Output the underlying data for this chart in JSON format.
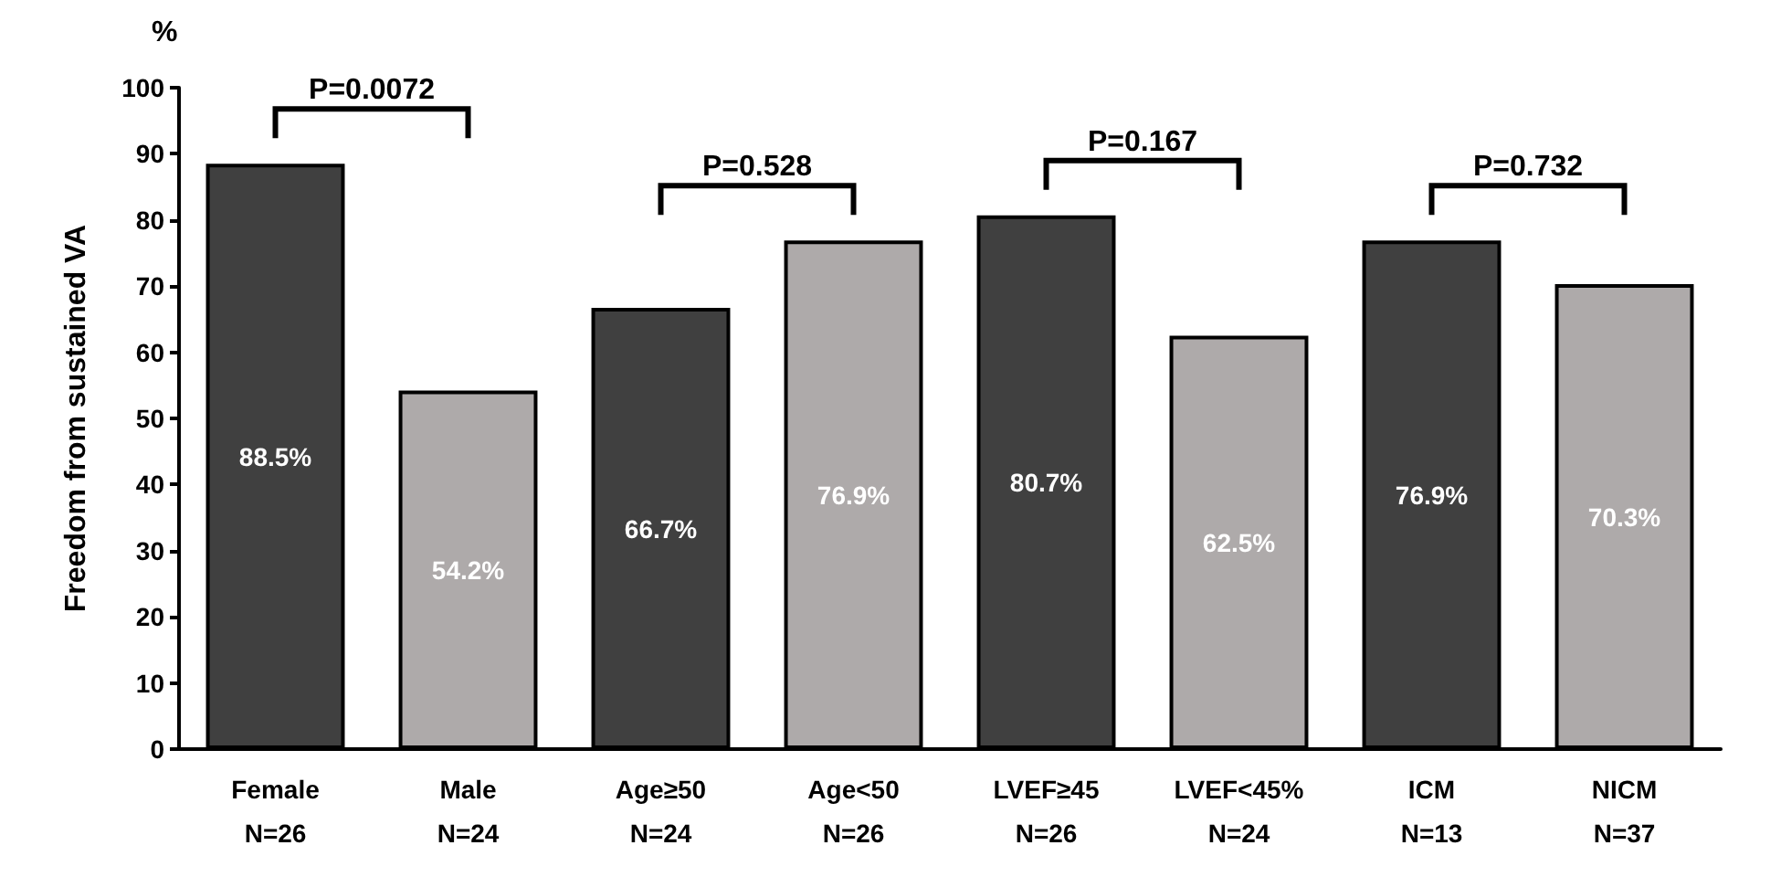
{
  "chart_data": {
    "type": "bar",
    "ylabel": "Freedom from sustained VA",
    "categories": [
      "Female\nN=26",
      "Male\nN=24",
      "Age≥50\nN=24",
      "Age<50\nN=26",
      "LVEF≥45\nN=26",
      "LVEF<45%\nN=24",
      "ICM\nN=13",
      "NICM\nN=37"
    ],
    "values": [
      88.5,
      54.2,
      66.7,
      76.9,
      80.7,
      62.5,
      76.9,
      70.3
    ],
    "value_labels": [
      "88.5%",
      "54.2%",
      "66.7%",
      "76.9%",
      "80.7%",
      "62.5%",
      "76.9%",
      "70.3%"
    ],
    "colors": [
      "#404040",
      "#aeaaaa",
      "#404040",
      "#aeaaaa",
      "#404040",
      "#aeaaaa",
      "#404040",
      "#aeaaaa"
    ],
    "ylim": [
      0,
      100
    ],
    "yticks": [
      0,
      10,
      20,
      30,
      40,
      50,
      60,
      70,
      80,
      90,
      100
    ],
    "grid": false,
    "annotations": [
      "%",
      "P=0.0072",
      "P=0.528",
      "P=0.167",
      "P=0.732"
    ]
  }
}
